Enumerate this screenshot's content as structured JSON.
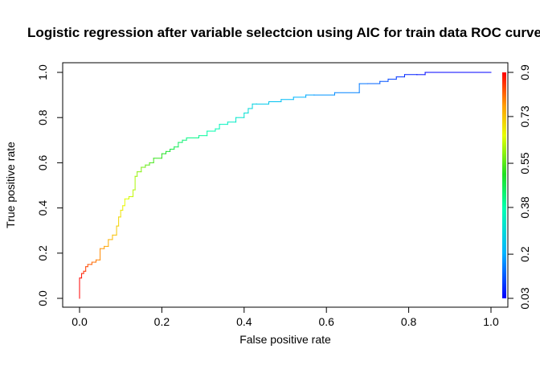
{
  "chart_data": {
    "type": "line",
    "title": "Logistic regression after variable selectcion using AIC for train data ROC curve",
    "xlabel": "False positive rate",
    "ylabel": "True positive rate",
    "xlim": [
      0,
      1
    ],
    "ylim": [
      0,
      1
    ],
    "x_ticks": [
      "0.0",
      "0.2",
      "0.4",
      "0.6",
      "0.8",
      "1.0"
    ],
    "y_ticks": [
      "0.0",
      "0.2",
      "0.4",
      "0.6",
      "0.8",
      "1.0"
    ],
    "grid": false,
    "colorbar": {
      "ticks": [
        "0.03",
        "0.2",
        "0.38",
        "0.55",
        "0.73",
        "0.9"
      ],
      "min": 0.03,
      "max": 0.9,
      "colormap": "rainbow (red = high cutoff, blue = low cutoff)"
    },
    "series": [
      {
        "x": [
          0,
          0,
          0.005,
          0.005,
          0.01,
          0.01,
          0.015,
          0.015,
          0.02,
          0.02,
          0.03,
          0.03,
          0.04,
          0.04,
          0.05,
          0.05,
          0.06,
          0.06,
          0.07,
          0.07,
          0.08,
          0.08,
          0.09,
          0.09,
          0.095,
          0.095,
          0.1,
          0.1,
          0.105,
          0.105,
          0.11,
          0.11,
          0.12,
          0.12,
          0.13,
          0.13,
          0.135,
          0.135,
          0.14,
          0.14,
          0.15,
          0.15,
          0.16,
          0.16,
          0.17,
          0.17,
          0.18,
          0.18,
          0.2,
          0.2,
          0.21,
          0.21,
          0.22,
          0.22,
          0.23,
          0.23,
          0.24,
          0.24,
          0.25,
          0.25,
          0.26,
          0.26,
          0.29,
          0.29,
          0.31,
          0.31,
          0.33,
          0.33,
          0.34,
          0.34,
          0.36,
          0.36,
          0.38,
          0.38,
          0.4,
          0.4,
          0.41,
          0.41,
          0.42,
          0.42,
          0.43,
          0.43,
          0.46,
          0.46,
          0.49,
          0.49,
          0.52,
          0.52,
          0.55,
          0.55,
          0.57,
          0.57,
          0.62,
          0.62,
          0.68,
          0.68,
          0.7,
          0.7,
          0.73,
          0.73,
          0.75,
          0.75,
          0.77,
          0.77,
          0.79,
          0.79,
          0.82,
          0.82,
          0.84,
          0.84,
          1.0
        ],
        "y": [
          0,
          0.09,
          0.09,
          0.11,
          0.11,
          0.12,
          0.12,
          0.14,
          0.14,
          0.15,
          0.15,
          0.16,
          0.16,
          0.17,
          0.17,
          0.22,
          0.22,
          0.23,
          0.23,
          0.26,
          0.26,
          0.28,
          0.28,
          0.32,
          0.32,
          0.36,
          0.36,
          0.39,
          0.39,
          0.41,
          0.41,
          0.44,
          0.44,
          0.45,
          0.45,
          0.48,
          0.48,
          0.54,
          0.54,
          0.56,
          0.56,
          0.58,
          0.58,
          0.59,
          0.59,
          0.6,
          0.6,
          0.62,
          0.62,
          0.64,
          0.64,
          0.65,
          0.65,
          0.66,
          0.66,
          0.67,
          0.67,
          0.69,
          0.69,
          0.7,
          0.7,
          0.71,
          0.71,
          0.72,
          0.72,
          0.74,
          0.74,
          0.75,
          0.75,
          0.77,
          0.77,
          0.78,
          0.78,
          0.8,
          0.8,
          0.82,
          0.82,
          0.84,
          0.84,
          0.86,
          0.86,
          0.86,
          0.86,
          0.87,
          0.87,
          0.88,
          0.88,
          0.89,
          0.89,
          0.9,
          0.9,
          0.9,
          0.9,
          0.91,
          0.91,
          0.95,
          0.95,
          0.95,
          0.95,
          0.96,
          0.96,
          0.97,
          0.97,
          0.98,
          0.98,
          0.99,
          0.99,
          0.99,
          0.99,
          1.0,
          1.0
        ]
      }
    ]
  }
}
